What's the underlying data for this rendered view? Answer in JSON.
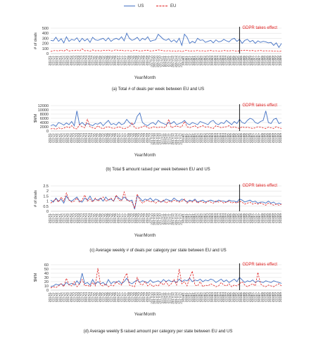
{
  "legend": {
    "us_label": "US",
    "eu_label": "EU",
    "us_color": "#4472c4",
    "eu_color": "#e02020"
  },
  "x_tick_labels": [
    "2017/1",
    "2017/2",
    "2017/3",
    "2017/4",
    "2017/5",
    "2017/6",
    "2017/7",
    "2017/8",
    "2017/9",
    "2017/10",
    "2017/11",
    "2017/12",
    "2018/1",
    "2018/2",
    "2018/3",
    "2018/4",
    "2018/5",
    "2018/6",
    "2018/7",
    "2018/8",
    "2018/9"
  ],
  "chart_data": [
    {
      "type": "line",
      "caption": "(a) Total # of deals per week between EU and US",
      "ylabel": "# of deals",
      "xlabel": "Year/Month",
      "annotation": "GDPR takes effect",
      "annotation_week": 73,
      "ylim": [
        0,
        500
      ],
      "yticks": [
        0,
        100,
        200,
        300,
        400,
        500
      ],
      "x_week_range": [
        1,
        89
      ],
      "series": [
        {
          "name": "US",
          "values": [
            260,
            250,
            320,
            240,
            290,
            210,
            330,
            240,
            280,
            260,
            310,
            230,
            300,
            250,
            290,
            220,
            320,
            270,
            260,
            280,
            300,
            250,
            310,
            240,
            280,
            300,
            270,
            330,
            250,
            400,
            300,
            260,
            280,
            320,
            250,
            300,
            270,
            330,
            240,
            260,
            270,
            380,
            330,
            280,
            260,
            290,
            230,
            270,
            220,
            300,
            160,
            380,
            320,
            200,
            240,
            210,
            300,
            260,
            270,
            220,
            240,
            260,
            210,
            270,
            230,
            240,
            280,
            250,
            230,
            280,
            300,
            240,
            280,
            200,
            260,
            280,
            230,
            260,
            200,
            250,
            220,
            240,
            230,
            210,
            220,
            160,
            210,
            120,
            200
          ]
        },
        {
          "name": "EU",
          "values": [
            40,
            55,
            60,
            50,
            70,
            45,
            80,
            50,
            60,
            55,
            70,
            50,
            90,
            55,
            60,
            45,
            70,
            55,
            60,
            50,
            65,
            55,
            70,
            50,
            60,
            75,
            55,
            70,
            50,
            60,
            55,
            50,
            65,
            60,
            50,
            55,
            60,
            65,
            50,
            55,
            60,
            70,
            65,
            55,
            50,
            60,
            45,
            55,
            40,
            60,
            35,
            55,
            65,
            45,
            55,
            50,
            60,
            50,
            55,
            45,
            55,
            60,
            50,
            55,
            45,
            50,
            60,
            55,
            50,
            60,
            55,
            45,
            55,
            60,
            65,
            60,
            55,
            60,
            50,
            55,
            60,
            50,
            55,
            50,
            55,
            45,
            50,
            40,
            50
          ]
        }
      ]
    },
    {
      "type": "line",
      "caption": "(b) Total $ amount raised per week between EU and US",
      "ylabel": "$MM",
      "xlabel": "Year/Month",
      "annotation": "GDPR takes effect",
      "annotation_week": 73,
      "ylim": [
        0,
        12000
      ],
      "yticks": [
        0,
        2000,
        4000,
        6000,
        8000,
        10000,
        12000
      ],
      "x_week_range": [
        1,
        89
      ],
      "series": [
        {
          "name": "US",
          "values": [
            2500,
            3000,
            2200,
            4000,
            3500,
            2800,
            3800,
            3000,
            4500,
            2500,
            9500,
            3000,
            4000,
            2800,
            3500,
            3000,
            2500,
            3500,
            3200,
            4000,
            2500,
            3800,
            5000,
            3000,
            3500,
            2800,
            4200,
            3000,
            3500,
            5500,
            4000,
            3000,
            3500,
            7000,
            8500,
            4000,
            3000,
            2500,
            3500,
            4000,
            3000,
            5000,
            4000,
            3500,
            3000,
            4000,
            3500,
            4500,
            3000,
            3500,
            4000,
            5000,
            3500,
            3000,
            4000,
            3500,
            3000,
            4500,
            4000,
            3500,
            3000,
            4500,
            5000,
            3500,
            3000,
            4000,
            3500,
            5000,
            4000,
            3000,
            4500,
            3500,
            5500,
            4000,
            3500,
            5000,
            6000,
            5500,
            4000,
            3500,
            4500,
            5000,
            9500,
            4000,
            3500,
            5500,
            6000,
            3500,
            4000
          ]
        },
        {
          "name": "EU",
          "values": [
            1000,
            1200,
            800,
            1500,
            1000,
            1300,
            2000,
            1500,
            2500,
            1200,
            1000,
            3000,
            2000,
            1500,
            5500,
            2000,
            1500,
            1200,
            2500,
            1500,
            1000,
            1800,
            2000,
            1500,
            1200,
            1500,
            2000,
            1500,
            1000,
            1500,
            2000,
            4000,
            1500,
            1200,
            1500,
            2000,
            2500,
            1500,
            1200,
            2000,
            1800,
            1500,
            2000,
            1500,
            2000,
            5500,
            1500,
            2000,
            2500,
            1800,
            2000,
            4500,
            2000,
            1500,
            2000,
            2500,
            1500,
            2000,
            2500,
            1800,
            2000,
            1500,
            1200,
            2500,
            2000,
            1500,
            1800,
            2000,
            2500,
            1500,
            2000,
            1500,
            1200,
            2000,
            1500,
            1800,
            1500,
            1200,
            1500,
            2000,
            1800,
            1500,
            1200,
            1800,
            1500,
            1200,
            2000,
            1500,
            1200
          ]
        }
      ]
    },
    {
      "type": "line",
      "caption": "(c) Average weekly # of deals per category per state between EU and US",
      "ylabel": "# of deals",
      "xlabel": "Year/Month",
      "annotation": "GDPR takes effect",
      "annotation_week": 73,
      "ylim": [
        0,
        2.5
      ],
      "yticks": [
        0,
        0.5,
        1,
        1.5,
        2,
        2.5
      ],
      "x_week_range": [
        1,
        89
      ],
      "series": [
        {
          "name": "US",
          "values": [
            1.1,
            0.9,
            1.3,
            1.0,
            1.2,
            0.8,
            1.5,
            1.1,
            1.0,
            1.2,
            1.4,
            1.0,
            0.9,
            1.3,
            1.1,
            1.5,
            1.0,
            1.2,
            1.1,
            1.3,
            1.0,
            1.4,
            1.1,
            1.2,
            1.0,
            1.5,
            1.3,
            1.1,
            1.4,
            1.2,
            1.0,
            1.1,
            0.2,
            1.5,
            1.3,
            1.0,
            1.2,
            1.1,
            1.3,
            1.0,
            1.2,
            1.1,
            0.9,
            1.0,
            1.2,
            1.1,
            1.0,
            1.3,
            1.1,
            1.0,
            1.2,
            1.1,
            0.9,
            1.1,
            1.0,
            1.2,
            0.9,
            1.0,
            1.1,
            0.9,
            1.0,
            1.1,
            1.0,
            0.9,
            1.1,
            1.0,
            1.0,
            0.9,
            1.1,
            1.0,
            1.0,
            0.9,
            1.2,
            1.1,
            0.9,
            1.0,
            1.1,
            0.9,
            1.0,
            0.8,
            0.9,
            0.9,
            0.8,
            1.0,
            0.8,
            0.9,
            0.7,
            0.8,
            0.7
          ]
        },
        {
          "name": "EU",
          "values": [
            0.8,
            1.0,
            1.2,
            0.9,
            1.4,
            1.0,
            1.8,
            1.1,
            0.9,
            1.0,
            1.3,
            0.9,
            1.1,
            1.6,
            1.0,
            1.2,
            0.9,
            1.3,
            1.0,
            1.2,
            1.4,
            1.0,
            1.1,
            1.3,
            1.0,
            1.6,
            1.1,
            1.0,
            1.9,
            1.1,
            1.0,
            0.9,
            0.3,
            1.7,
            1.1,
            0.8,
            1.0,
            1.1,
            0.9,
            1.0,
            0.8,
            1.0,
            0.9,
            1.1,
            0.8,
            1.0,
            0.9,
            1.1,
            1.0,
            0.9,
            1.0,
            1.2,
            0.8,
            1.0,
            0.9,
            1.1,
            0.8,
            1.0,
            0.9,
            0.8,
            1.0,
            0.9,
            0.8,
            1.0,
            0.9,
            1.0,
            0.8,
            0.9,
            1.0,
            0.8,
            0.9,
            0.8,
            1.0,
            0.9,
            0.7,
            0.8,
            0.9,
            0.7,
            0.8,
            0.7,
            0.8,
            0.7,
            0.6,
            0.8,
            0.7,
            0.6,
            0.7,
            0.6,
            0.7
          ]
        }
      ]
    },
    {
      "type": "line",
      "caption": "(d) Average weekly $ raised amount per category per state between EU and US",
      "ylabel": "$MM",
      "xlabel": "Year/Month",
      "annotation": "GDPR takes effect",
      "annotation_week": 73,
      "ylim": [
        0,
        60
      ],
      "yticks": [
        0,
        10,
        20,
        30,
        40,
        50,
        60
      ],
      "x_week_range": [
        1,
        89
      ],
      "series": [
        {
          "name": "US",
          "values": [
            8,
            10,
            14,
            12,
            15,
            11,
            18,
            13,
            16,
            12,
            22,
            14,
            40,
            15,
            18,
            12,
            25,
            14,
            20,
            15,
            18,
            12,
            25,
            15,
            20,
            18,
            22,
            15,
            20,
            28,
            18,
            15,
            20,
            24,
            18,
            22,
            20,
            17,
            24,
            18,
            20,
            22,
            18,
            25,
            20,
            24,
            20,
            22,
            18,
            26,
            20,
            24,
            22,
            28,
            20,
            24,
            22,
            26,
            20,
            24,
            22,
            26,
            24,
            18,
            22,
            26,
            20,
            24,
            18,
            22,
            26,
            20,
            30,
            24,
            18,
            22,
            20,
            24,
            18,
            22,
            20,
            18,
            22,
            20,
            18,
            22,
            20,
            18,
            16
          ]
        },
        {
          "name": "EU",
          "values": [
            5,
            8,
            6,
            10,
            15,
            8,
            28,
            12,
            10,
            20,
            8,
            15,
            25,
            10,
            12,
            8,
            18,
            10,
            52,
            12,
            10,
            15,
            8,
            12,
            10,
            20,
            15,
            12,
            28,
            40,
            12,
            10,
            8,
            30,
            15,
            12,
            20,
            10,
            15,
            8,
            12,
            10,
            18,
            12,
            20,
            10,
            15,
            25,
            12,
            50,
            15,
            20,
            10,
            30,
            45,
            12,
            10,
            20,
            8,
            12,
            10,
            15,
            12,
            8,
            10,
            18,
            12,
            10,
            15,
            8,
            12,
            10,
            15,
            20,
            12,
            8,
            12,
            15,
            10,
            42,
            15,
            10,
            8,
            12,
            10,
            8,
            12,
            15,
            10
          ]
        }
      ]
    }
  ]
}
